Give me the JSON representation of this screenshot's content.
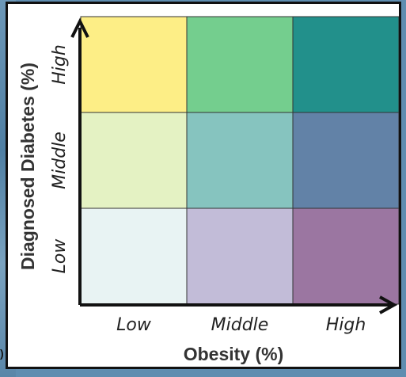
{
  "background_fragment": ")",
  "chart_data": {
    "type": "heatmap",
    "title": "",
    "xlabel": "Obesity (%)",
    "ylabel": "Diagnosed Diabetes (%)",
    "x_categories": [
      "Low",
      "Middle",
      "High"
    ],
    "y_categories": [
      "Low",
      "Middle",
      "High"
    ],
    "cells": [
      {
        "x": "Low",
        "y": "High",
        "color": "#fdee86"
      },
      {
        "x": "Middle",
        "y": "High",
        "color": "#74ce8e"
      },
      {
        "x": "High",
        "y": "High",
        "color": "#22908b"
      },
      {
        "x": "Low",
        "y": "Middle",
        "color": "#e4f2c3"
      },
      {
        "x": "Middle",
        "y": "Middle",
        "color": "#86c4bf"
      },
      {
        "x": "High",
        "y": "Middle",
        "color": "#6282a7"
      },
      {
        "x": "Low",
        "y": "Low",
        "color": "#e8f3f3"
      },
      {
        "x": "Middle",
        "y": "Low",
        "color": "#c2bcd8"
      },
      {
        "x": "High",
        "y": "Low",
        "color": "#9b76a1"
      }
    ],
    "grid": false,
    "legend": "none"
  }
}
